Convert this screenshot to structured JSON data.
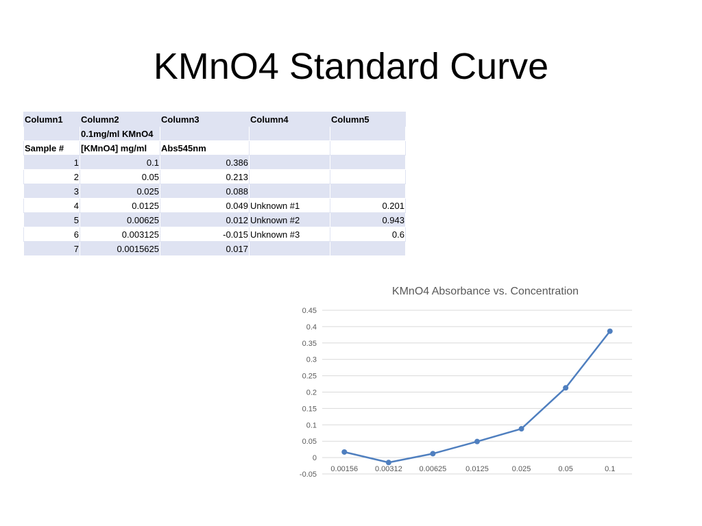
{
  "slide": {
    "title": "KMnO4 Standard Curve"
  },
  "table": {
    "rows": [
      [
        "Column1",
        "Column2",
        "Column3",
        "Column4",
        "Column5"
      ],
      [
        "",
        "0.1mg/ml KMnO4",
        "",
        "",
        ""
      ],
      [
        "Sample #",
        "[KMnO4] mg/ml",
        "Abs545nm",
        "",
        ""
      ],
      [
        "1",
        "0.1",
        "0.386",
        "",
        ""
      ],
      [
        "2",
        "0.05",
        "0.213",
        "",
        ""
      ],
      [
        "3",
        "0.025",
        "0.088",
        "",
        ""
      ],
      [
        "4",
        "0.0125",
        "0.049",
        "Unknown #1",
        "0.201"
      ],
      [
        "5",
        "0.00625",
        "0.012",
        "Unknown #2",
        "0.943"
      ],
      [
        "6",
        "0.003125",
        "-0.015",
        "Unknown #3",
        "0.6"
      ],
      [
        "7",
        "0.0015625",
        "0.017",
        "",
        ""
      ]
    ]
  },
  "chart_data": {
    "type": "line",
    "title": "KMnO4 Absorbance vs. Concentration",
    "categories": [
      "0.00156",
      "0.00312",
      "0.00625",
      "0.0125",
      "0.025",
      "0.05",
      "0.1"
    ],
    "series": [
      {
        "values": [
          0.017,
          -0.015,
          0.012,
          0.049,
          0.088,
          0.213,
          0.386
        ],
        "color": "#4f7fbf"
      }
    ],
    "yticks": [
      "-0.05",
      "0",
      "0.05",
      "0.1",
      "0.15",
      "0.2",
      "0.25",
      "0.3",
      "0.35",
      "0.4",
      "0.45"
    ],
    "ylim": [
      -0.05,
      0.45
    ],
    "xlabel": "",
    "ylabel": "",
    "grid": true,
    "legend": "none",
    "colors": {
      "line": "#4f7fbf",
      "grid": "#d9d9d9",
      "text": "#595959"
    }
  }
}
